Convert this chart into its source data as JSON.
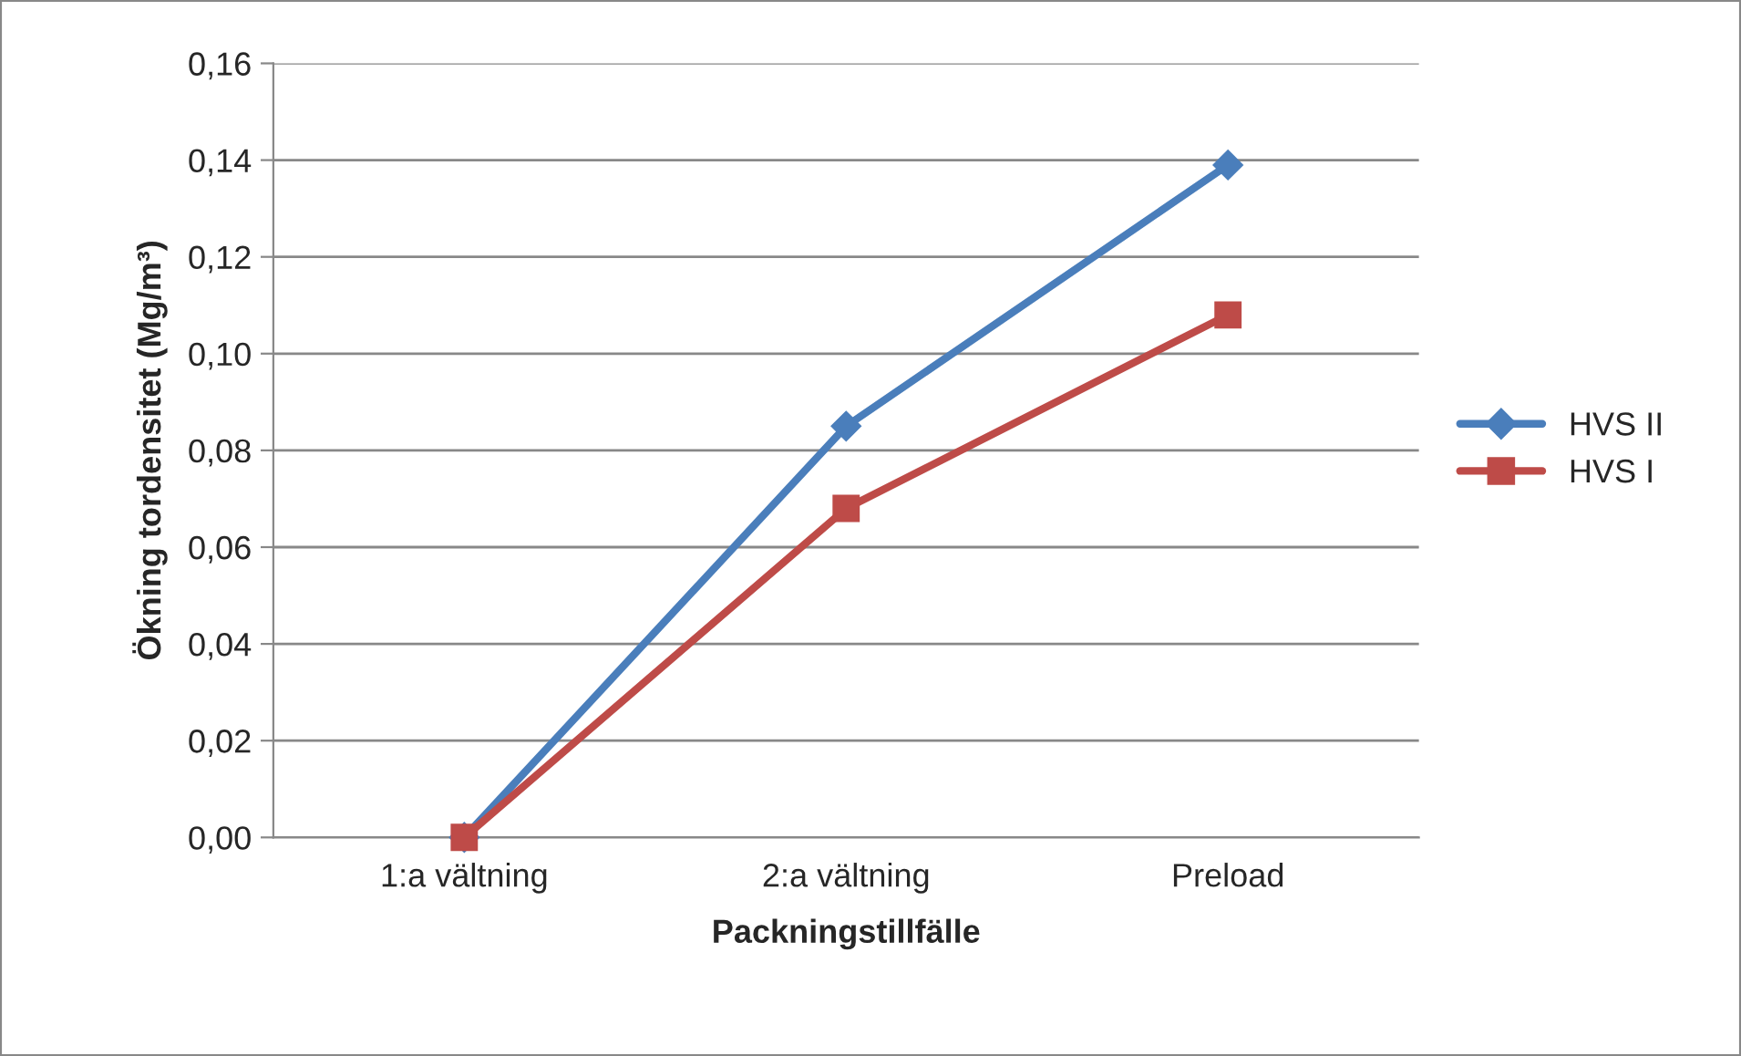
{
  "chart_data": {
    "type": "line",
    "xlabel": "Packningstillfälle",
    "ylabel": "Ökning tordensitet (Mg/m³)",
    "categories": [
      "1:a vältning",
      "2:a vältning",
      "Preload"
    ],
    "series": [
      {
        "name": "HVS II",
        "color": "#4a7ebb",
        "marker": "diamond",
        "values": [
          0,
          0.085,
          0.139
        ]
      },
      {
        "name": "HVS I",
        "color": "#be4b48",
        "marker": "square",
        "values": [
          0,
          0.068,
          0.108
        ]
      }
    ],
    "ylim": [
      0,
      0.16
    ],
    "yticks": [
      {
        "value": 0,
        "label": "0,00"
      },
      {
        "value": 0.02,
        "label": "0,02"
      },
      {
        "value": 0.04,
        "label": "0,04"
      },
      {
        "value": 0.06,
        "label": "0,06"
      },
      {
        "value": 0.08,
        "label": "0,08"
      },
      {
        "value": 0.1,
        "label": "0,10"
      },
      {
        "value": 0.12,
        "label": "0,12"
      },
      {
        "value": 0.14,
        "label": "0,14"
      },
      {
        "value": 0.16,
        "label": "0,16"
      }
    ],
    "grid": "y",
    "legend": "right",
    "line_style": "solid"
  }
}
